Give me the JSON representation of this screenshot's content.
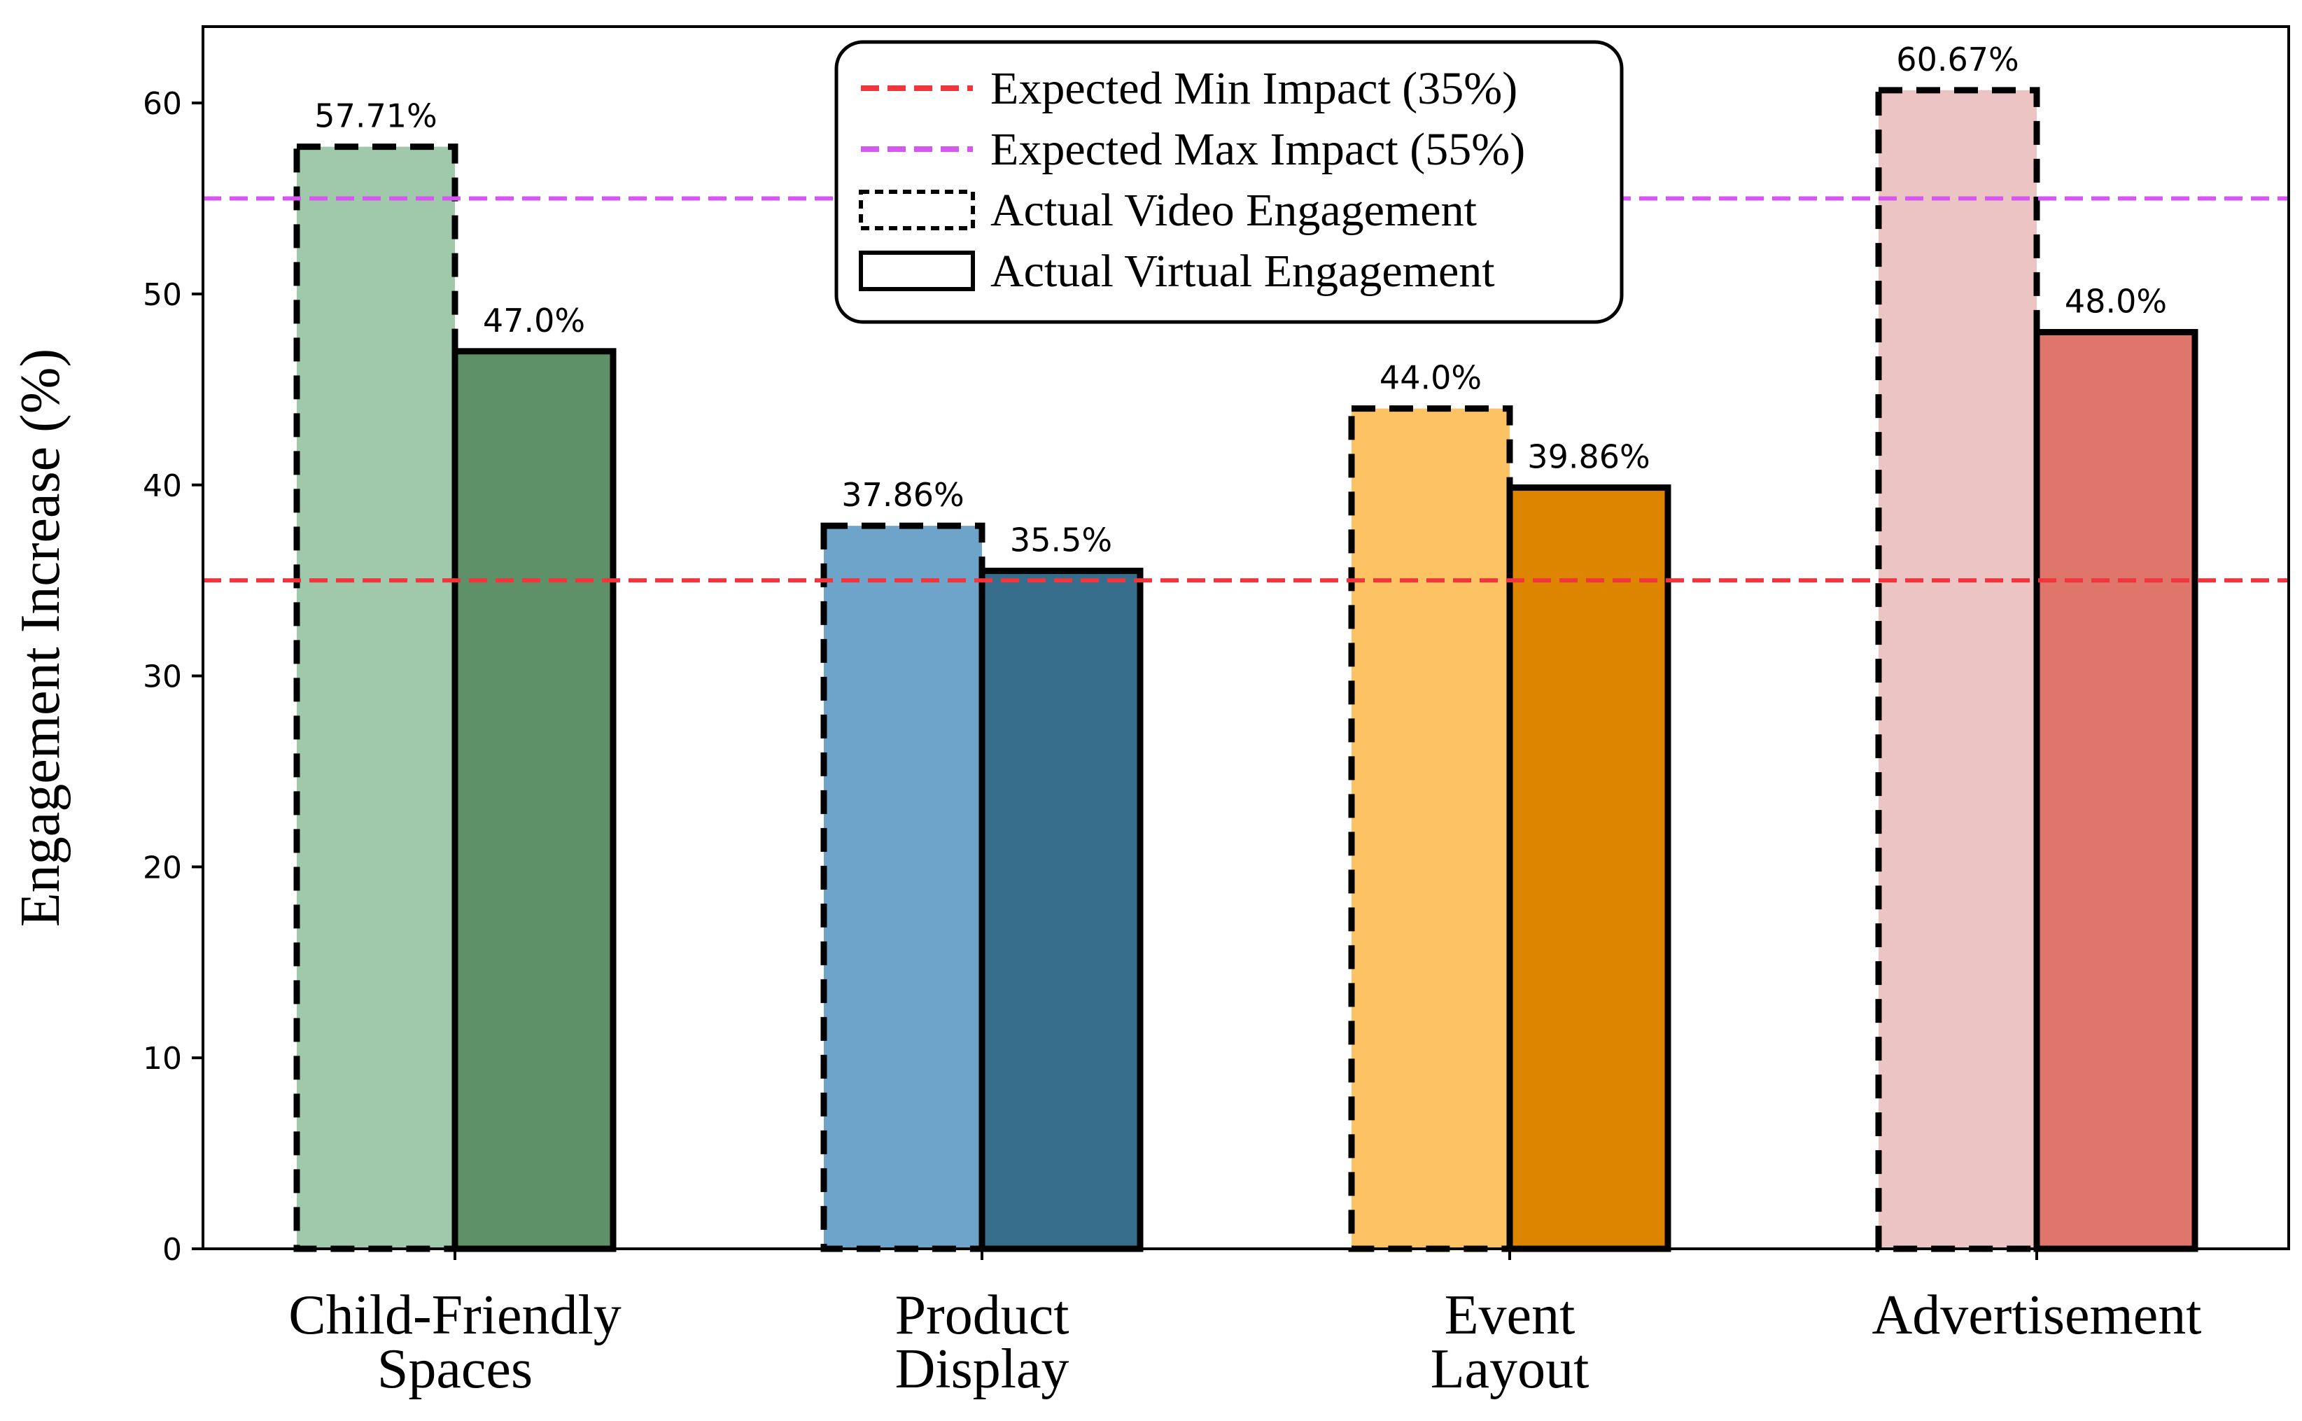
{
  "chart_data": {
    "type": "bar",
    "title": "",
    "xlabel": "",
    "ylabel": "Engagement Increase (%)",
    "ylim": [
      0,
      64
    ],
    "yticks": [
      0,
      10,
      20,
      30,
      40,
      50,
      60
    ],
    "grid": false,
    "legend_position": "top-center",
    "categories": [
      {
        "line1": "Child-Friendly",
        "line2": "Spaces"
      },
      {
        "line1": "Product",
        "line2": "Display"
      },
      {
        "line1": "Event",
        "line2": "Layout"
      },
      {
        "line1": "Advertisement",
        "line2": ""
      }
    ],
    "series": [
      {
        "name": "Actual Video Engagement",
        "style": "dashed",
        "values": [
          57.71,
          37.86,
          44.0,
          60.67
        ],
        "labels": [
          "57.71%",
          "37.86%",
          "44.0%",
          "60.67%"
        ],
        "colors": [
          "#a0c9ab",
          "#6ea4c9",
          "#fcc264",
          "#ecc4c3"
        ]
      },
      {
        "name": "Actual Virtual Engagement",
        "style": "solid",
        "values": [
          47.0,
          35.5,
          39.86,
          48.0
        ],
        "labels": [
          "47.0%",
          "35.5%",
          "39.86%",
          "48.0%"
        ],
        "colors": [
          "#5f9169",
          "#366d8b",
          "#de8500",
          "#e0756c"
        ]
      }
    ],
    "reference_lines": [
      {
        "name": "Expected Min Impact (35%)",
        "value": 35,
        "color": "#f0353c"
      },
      {
        "name": "Expected Max Impact (55%)",
        "value": 55,
        "color": "#d556f0"
      }
    ]
  }
}
